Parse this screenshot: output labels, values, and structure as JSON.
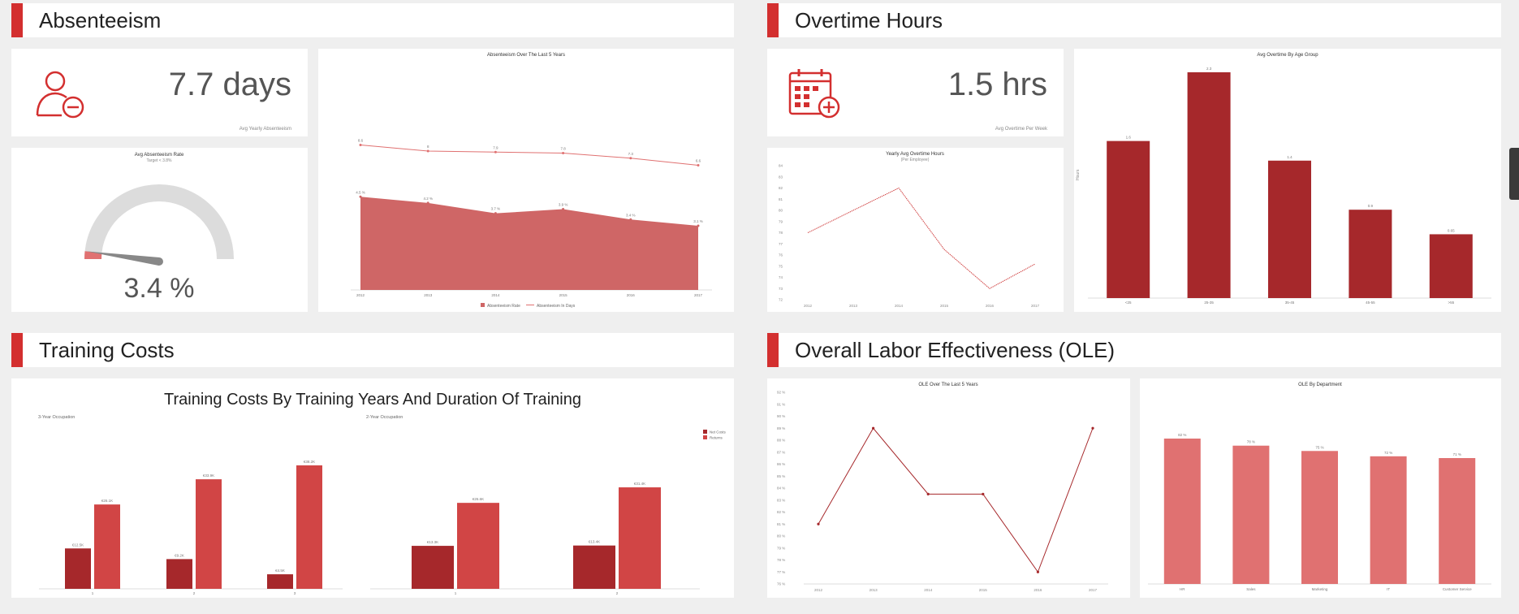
{
  "colors": {
    "accent": "#d32f2f",
    "dark_red": "#a6282b",
    "mid_red": "#d14545",
    "light_red": "#e07171",
    "area_red": "#cf6666",
    "gauge_bg": "#dcdcdc"
  },
  "sections": {
    "absenteeism": "Absenteeism",
    "overtime": "Overtime Hours",
    "training": "Training Costs",
    "ole": "Overall Labor Effectiveness (OLE)"
  },
  "kpis": {
    "absenteeism": {
      "value": "7.7 days",
      "label": "Avg Yearly Absenteeism",
      "icon": "user-minus-icon"
    },
    "overtime": {
      "value": "1.5 hrs",
      "label": "Avg Overtime Per Week",
      "icon": "calendar-plus-icon"
    }
  },
  "chart_data": [
    {
      "id": "gauge",
      "type": "gauge",
      "title": "Avg Absenteeism Rate",
      "subtitle": "Target < 3.8%",
      "value": 3.4,
      "value_label": "3.4 %",
      "range": [
        0,
        100
      ]
    },
    {
      "id": "absenteeism_trend",
      "type": "area",
      "title": "Absenteeism Over The Last 5 Years",
      "categories": [
        "2012",
        "2013",
        "2014",
        "2015",
        "2016",
        "2017"
      ],
      "series": [
        {
          "name": "Absenteeism Rate",
          "values": [
            4.5,
            4.2,
            3.7,
            3.9,
            3.4,
            3.1
          ],
          "labels": [
            "4.5 %",
            "4.2 %",
            "3.7 %",
            "3.9 %",
            "3.4 %",
            "3.1 %"
          ]
        },
        {
          "name": "Absenteeism In Days",
          "values": [
            8.6,
            8,
            7.9,
            7.8,
            7.3,
            6.6
          ],
          "labels": [
            "8.6",
            "8",
            "7.9",
            "7.8",
            "7.3",
            "6.6"
          ]
        }
      ]
    },
    {
      "id": "yearly_overtime",
      "type": "line",
      "title": "Yearly Avg Overtime Hours",
      "subtitle": "(Per Employee)",
      "categories": [
        "2012",
        "2013",
        "2014",
        "2015",
        "2016",
        "2017"
      ],
      "yticks": [
        "72",
        "73",
        "74",
        "75",
        "76",
        "77",
        "78",
        "79",
        "80",
        "81",
        "82",
        "83",
        "84"
      ],
      "ylim": [
        72,
        84
      ],
      "values": [
        78,
        80,
        82,
        76.5,
        73,
        75.2
      ]
    },
    {
      "id": "overtime_age",
      "type": "bar",
      "title": "Avg Overtime By Age Group",
      "ylabel": "Hours",
      "categories": [
        "<25",
        "25-35",
        "35-45",
        "45-55",
        ">55"
      ],
      "values": [
        1.6,
        2.3,
        1.4,
        0.9,
        0.65
      ],
      "labels": [
        "1.6",
        "2.3",
        "1.4",
        "0.9",
        "0.65"
      ]
    },
    {
      "id": "training_costs",
      "type": "bar",
      "title": "Training Costs By Training Years And Duration Of Training",
      "legend": [
        "Net Costs",
        "Returns"
      ],
      "groups": [
        {
          "label": "3-Year Occupation",
          "categories": [
            "1",
            "2",
            "3"
          ],
          "net": [
            12.5,
            9.2,
            4.5
          ],
          "returns": [
            26.1,
            33.9,
            38.2
          ],
          "net_labels": [
            "€12.5K",
            "€9.2K",
            "€4.5K"
          ],
          "returns_labels": [
            "€26.1K",
            "€33.9K",
            "€38.2K"
          ]
        },
        {
          "label": "2-Year Occupation",
          "categories": [
            "1",
            "2"
          ],
          "net": [
            13.3,
            13.4
          ],
          "returns": [
            26.6,
            31.4
          ],
          "net_labels": [
            "€13.3K",
            "€13.4K"
          ],
          "returns_labels": [
            "€26.6K",
            "€31.4K"
          ]
        }
      ]
    },
    {
      "id": "ole_trend",
      "type": "line",
      "title": "OLE Over The Last 5 Years",
      "categories": [
        "2012",
        "2013",
        "2014",
        "2015",
        "2016",
        "2017"
      ],
      "yticks": [
        "76 %",
        "77 %",
        "78 %",
        "79 %",
        "80 %",
        "81 %",
        "82 %",
        "83 %",
        "84 %",
        "85 %",
        "86 %",
        "87 %",
        "88 %",
        "89 %",
        "90 %",
        "91 %",
        "92 %"
      ],
      "ylim": [
        76,
        92
      ],
      "values": [
        81,
        89,
        83.5,
        83.5,
        77,
        89
      ]
    },
    {
      "id": "ole_dept",
      "type": "bar",
      "title": "OLE By Department",
      "categories": [
        "HR",
        "Sales",
        "Marketing",
        "IT",
        "Customer Service"
      ],
      "values": [
        82,
        78,
        75,
        72,
        71
      ],
      "labels": [
        "82 %",
        "78 %",
        "75 %",
        "72 %",
        "71 %"
      ],
      "ylim": [
        0,
        100
      ]
    }
  ]
}
